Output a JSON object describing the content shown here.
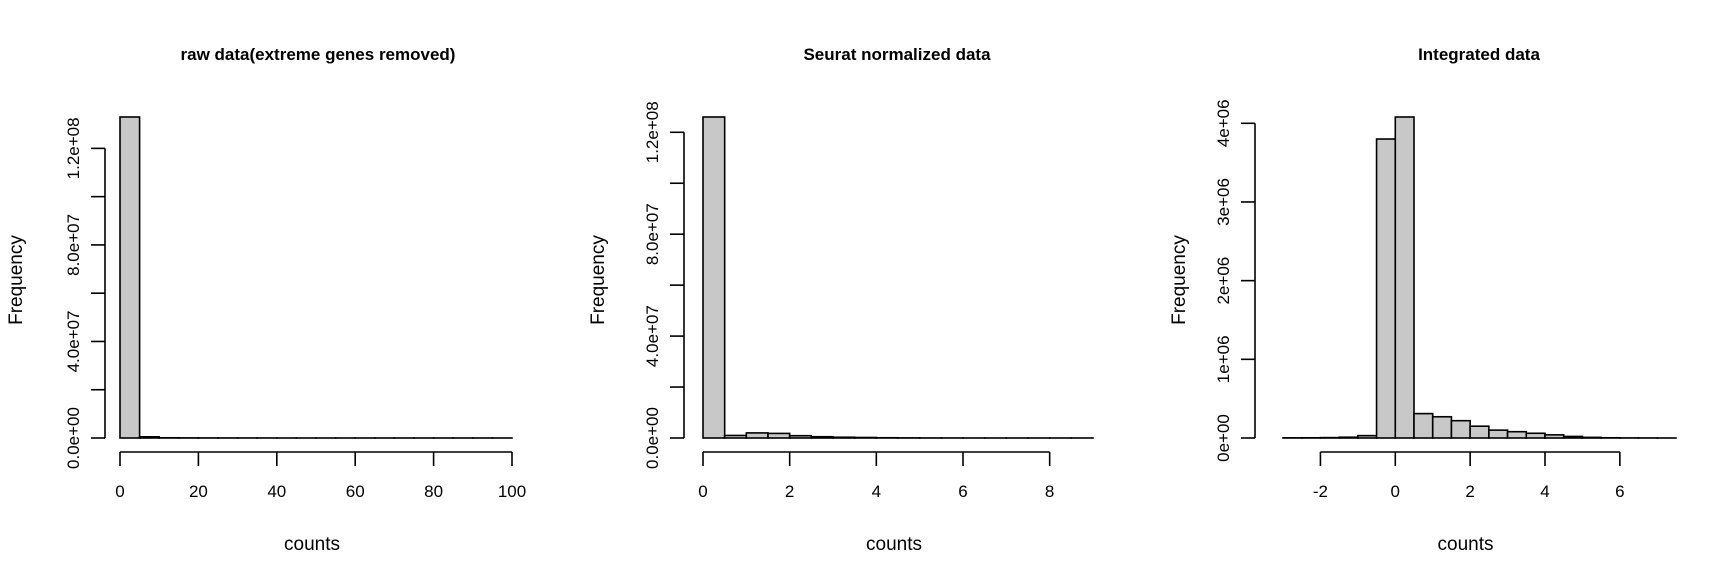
{
  "chart_data": [
    {
      "type": "bar",
      "title": "raw data(extreme genes removed)",
      "xlabel": "counts",
      "ylabel": "Frequency",
      "bin_edges": [
        0,
        5,
        10,
        15,
        20,
        25,
        30,
        35,
        40,
        45,
        50,
        55,
        60,
        65,
        70,
        75,
        80,
        85,
        90,
        95,
        100
      ],
      "values": [
        133000000,
        500000,
        100000,
        50000,
        30000,
        20000,
        10000,
        10000,
        5000,
        5000,
        5000,
        5000,
        0,
        0,
        0,
        0,
        0,
        0,
        0,
        0
      ],
      "xlim": [
        0,
        100
      ],
      "ylim": [
        0,
        133000000
      ],
      "x_ticks": [
        0,
        20,
        40,
        60,
        80,
        100
      ],
      "x_tick_labels": [
        "0",
        "20",
        "40",
        "60",
        "80",
        "100"
      ],
      "y_ticks": [
        0,
        20000000,
        40000000,
        60000000,
        80000000,
        100000000,
        120000000
      ],
      "y_tick_labels": [
        "0.0e+00",
        "",
        "4.0e+07",
        "",
        "8.0e+07",
        "",
        "1.2e+08"
      ],
      "fill_color": "#c8c8c8"
    },
    {
      "type": "bar",
      "title": "Seurat normalized data",
      "xlabel": "counts",
      "ylabel": "Frequency",
      "bin_edges": [
        0,
        0.5,
        1,
        1.5,
        2,
        2.5,
        3,
        3.5,
        4,
        4.5,
        5,
        5.5,
        6,
        6.5,
        7,
        7.5,
        8,
        8.5,
        9
      ],
      "values": [
        126000000,
        1000000,
        2000000,
        1800000,
        900000,
        500000,
        300000,
        200000,
        100000,
        50000,
        20000,
        10000,
        5000,
        2000,
        1000,
        500,
        200,
        100
      ],
      "xlim": [
        0,
        9
      ],
      "ylim": [
        0,
        126000000
      ],
      "x_ticks": [
        0,
        2,
        4,
        6,
        8
      ],
      "x_tick_labels": [
        "0",
        "2",
        "4",
        "6",
        "8"
      ],
      "y_ticks": [
        0,
        20000000,
        40000000,
        60000000,
        80000000,
        100000000,
        120000000
      ],
      "y_tick_labels": [
        "0.0e+00",
        "",
        "4.0e+07",
        "",
        "8.0e+07",
        "",
        "1.2e+08"
      ],
      "fill_color": "#c8c8c8"
    },
    {
      "type": "bar",
      "title": "Integrated data",
      "xlabel": "counts",
      "ylabel": "Frequency",
      "bin_edges": [
        -3,
        -2.5,
        -2,
        -1.5,
        -1,
        -0.5,
        0,
        0.5,
        1,
        1.5,
        2,
        2.5,
        3,
        3.5,
        4,
        4.5,
        5,
        5.5,
        6,
        6.5,
        7,
        7.5
      ],
      "values": [
        2000,
        3000,
        5000,
        10000,
        30000,
        3800000,
        4080000,
        310000,
        270000,
        220000,
        150000,
        100000,
        80000,
        60000,
        40000,
        20000,
        8000,
        3000,
        1000,
        500,
        200
      ],
      "xlim": [
        -3,
        7.5
      ],
      "ylim": [
        0,
        4080000
      ],
      "x_ticks": [
        -2,
        0,
        2,
        4,
        6
      ],
      "x_tick_labels": [
        "-2",
        "0",
        "2",
        "4",
        "6"
      ],
      "y_ticks": [
        0,
        1000000,
        2000000,
        3000000,
        4000000
      ],
      "y_tick_labels": [
        "0e+00",
        "1e+06",
        "2e+06",
        "3e+06",
        "4e+06"
      ],
      "fill_color": "#c8c8c8"
    }
  ]
}
